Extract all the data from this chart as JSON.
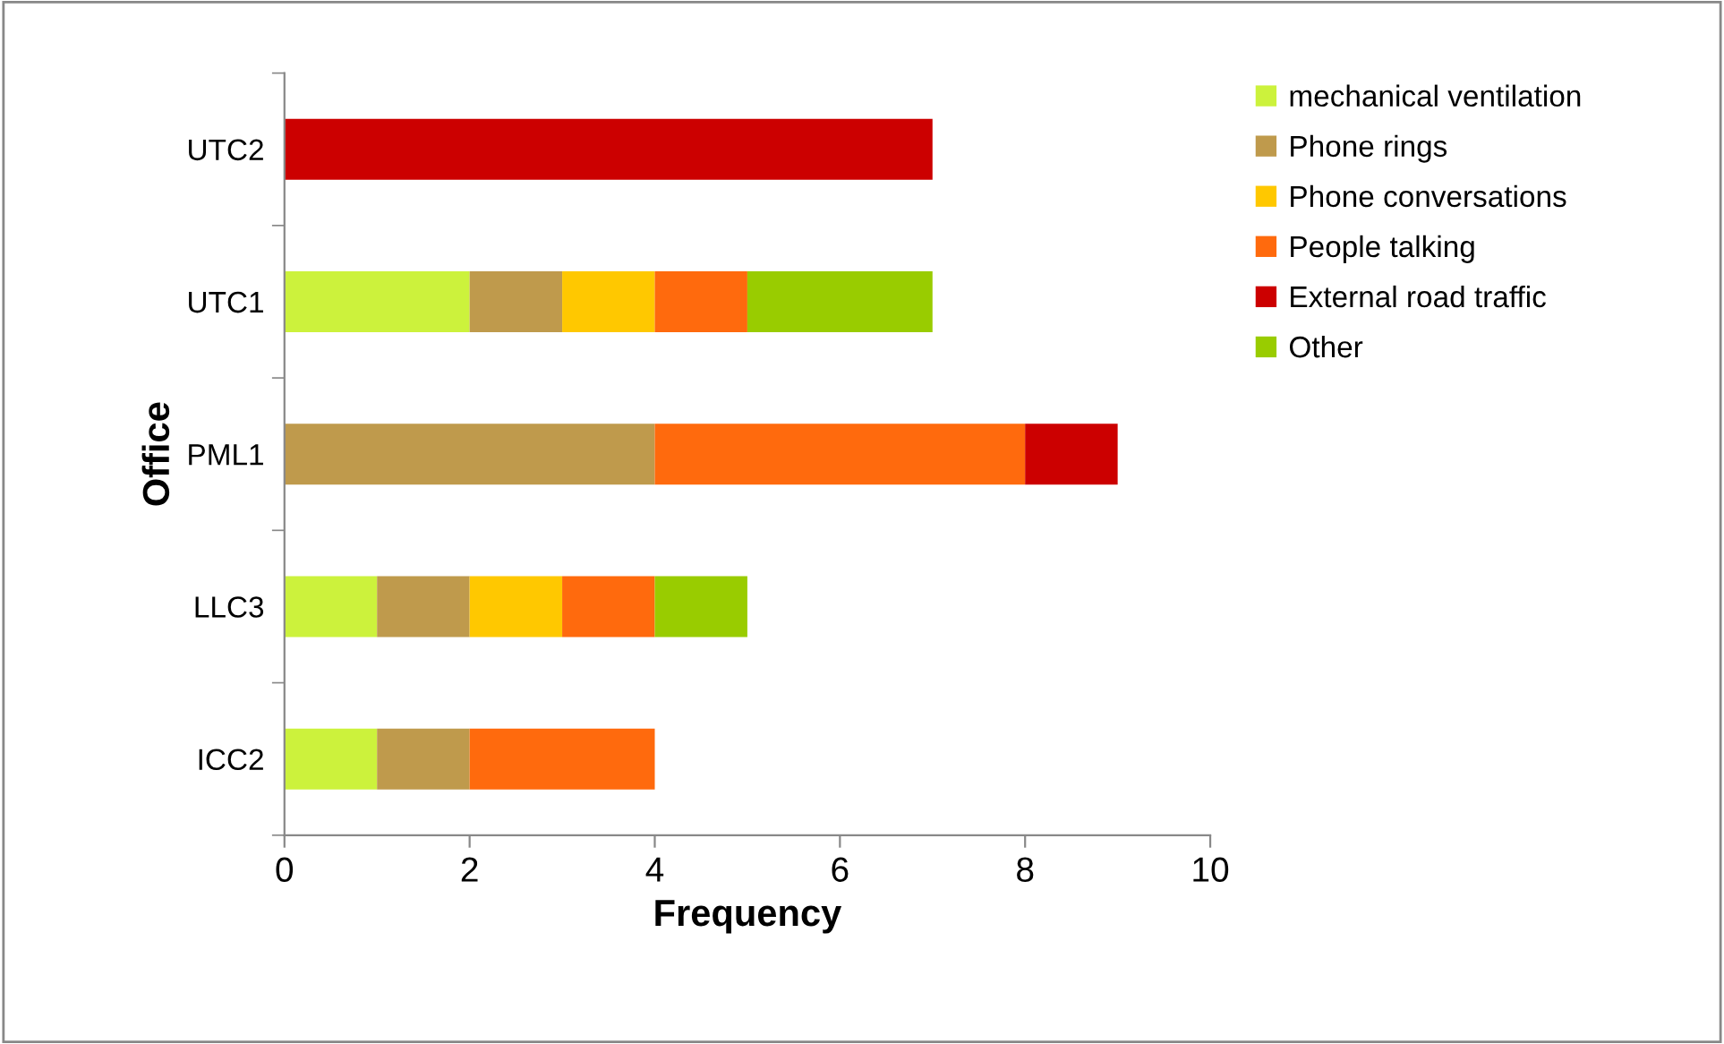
{
  "chart_data": {
    "type": "bar",
    "orientation": "horizontal",
    "stacked": true,
    "xlabel": "Frequency",
    "ylabel": "Office",
    "categories": [
      "UTC2",
      "UTC1",
      "PML1",
      "LLC3",
      "ICC2"
    ],
    "series": [
      {
        "name": "mechanical ventilation",
        "color": "#ccf23c",
        "values": [
          0,
          2,
          0,
          1,
          1
        ]
      },
      {
        "name": "Phone rings",
        "color": "#bf9a4c",
        "values": [
          0,
          1,
          4,
          1,
          1
        ]
      },
      {
        "name": "Phone conversations",
        "color": "#ffc800",
        "values": [
          0,
          1,
          0,
          1,
          0
        ]
      },
      {
        "name": "People talking",
        "color": "#ff6a0d",
        "values": [
          0,
          1,
          4,
          1,
          2
        ]
      },
      {
        "name": "External road traffic",
        "color": "#cc0000",
        "values": [
          7,
          0,
          1,
          0,
          0
        ]
      },
      {
        "name": "Other",
        "color": "#99cc00",
        "values": [
          0,
          2,
          0,
          1,
          0
        ]
      }
    ],
    "xlim": [
      0,
      10
    ],
    "xticks": [
      0,
      2,
      4,
      6,
      8,
      10
    ],
    "grid": false,
    "legend": "top right"
  }
}
